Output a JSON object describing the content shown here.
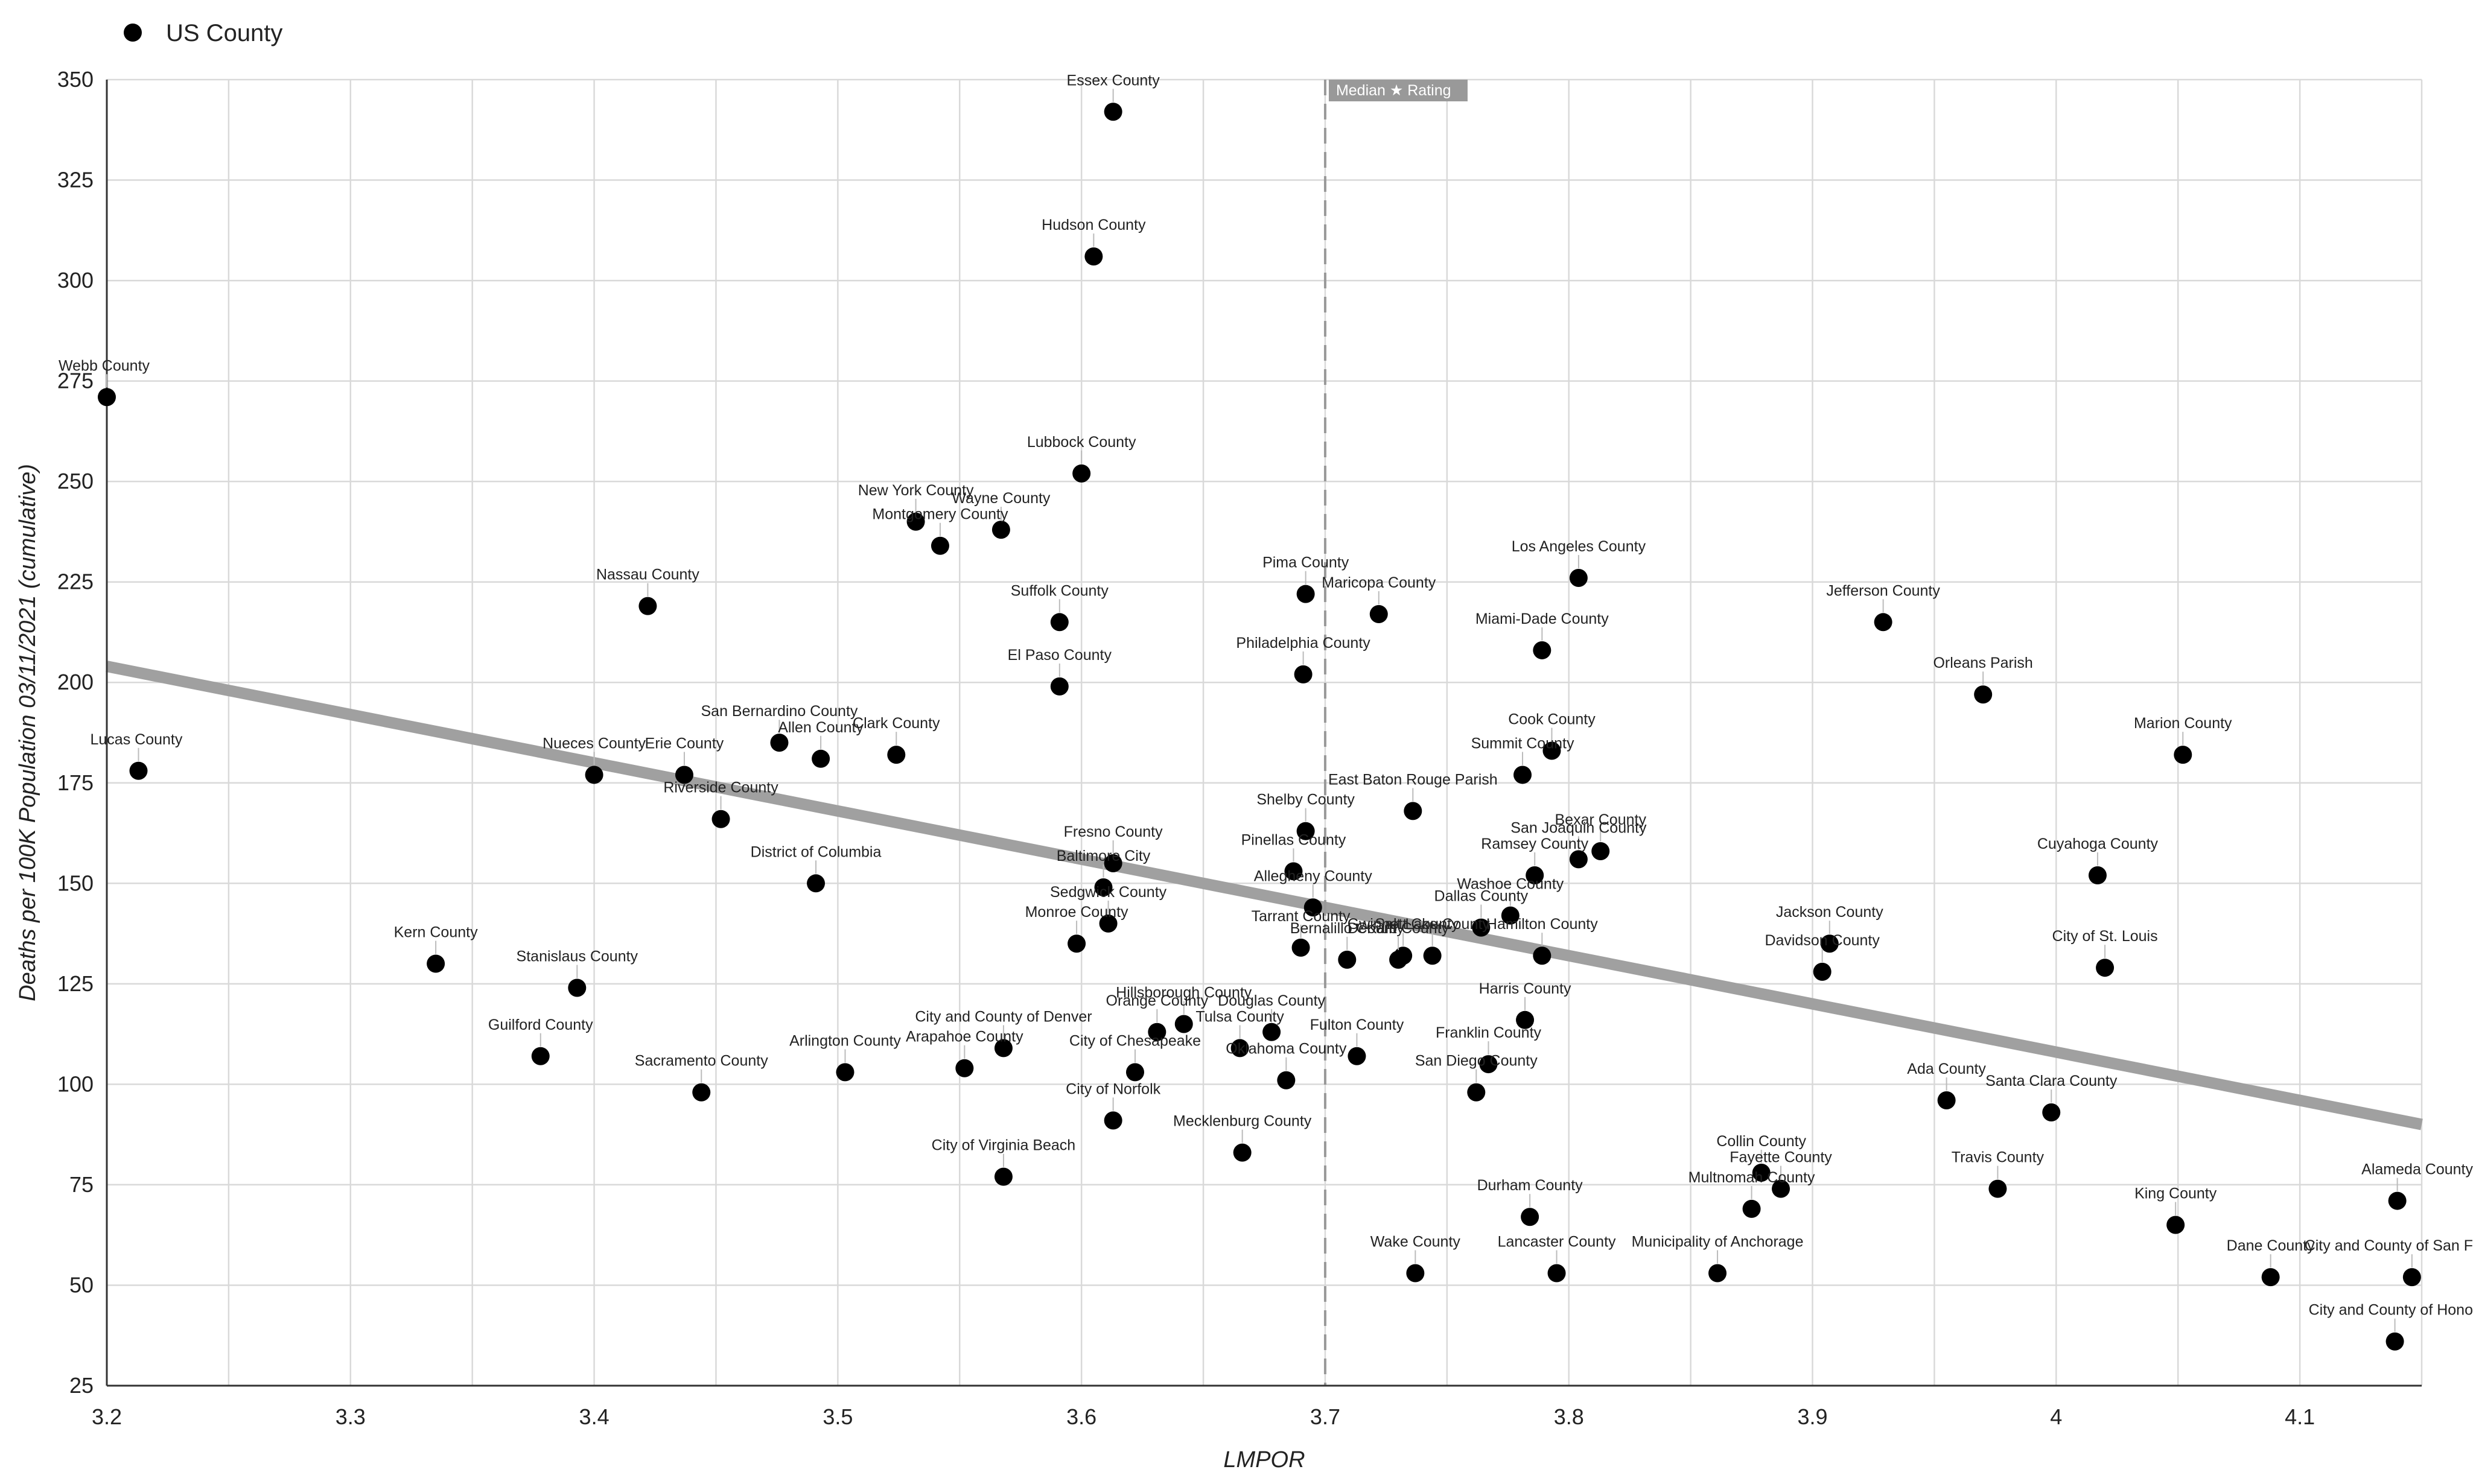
{
  "chart_data": {
    "type": "scatter",
    "xlabel": "LMPOR",
    "ylabel": "Deaths per 100K Population 03/11/2021 (cumulative)",
    "xlim": [
      3.2,
      4.15
    ],
    "ylim": [
      25,
      350
    ],
    "x_ticks": [
      "3.2",
      "3.3",
      "3.4",
      "3.5",
      "3.6",
      "3.7",
      "3.8",
      "3.9",
      "4",
      "4.1"
    ],
    "y_ticks": [
      "25",
      "50",
      "75",
      "100",
      "125",
      "150",
      "175",
      "200",
      "225",
      "250",
      "275",
      "300",
      "325",
      "350"
    ],
    "grid": true,
    "legend": {
      "position": "top-left",
      "entries": [
        "US County"
      ]
    },
    "series": [
      {
        "name": "US County",
        "color": "#000000",
        "points": [
          {
            "label": "Essex County",
            "x": 3.613,
            "y": 342
          },
          {
            "label": "Hudson County",
            "x": 3.605,
            "y": 306
          },
          {
            "label": "Webb County",
            "x": 3.2,
            "y": 271
          },
          {
            "label": "Lubbock County",
            "x": 3.6,
            "y": 252
          },
          {
            "label": "New York County",
            "x": 3.532,
            "y": 240
          },
          {
            "label": "Wayne County",
            "x": 3.567,
            "y": 238
          },
          {
            "label": "Montgomery County",
            "x": 3.542,
            "y": 234
          },
          {
            "label": "Pima County",
            "x": 3.692,
            "y": 222
          },
          {
            "label": "Maricopa County",
            "x": 3.722,
            "y": 217
          },
          {
            "label": "Los Angeles County",
            "x": 3.804,
            "y": 226
          },
          {
            "label": "Nassau County",
            "x": 3.422,
            "y": 219
          },
          {
            "label": "Suffolk County",
            "x": 3.591,
            "y": 215
          },
          {
            "label": "Jefferson County",
            "x": 3.929,
            "y": 215
          },
          {
            "label": "Miami-Dade County",
            "x": 3.789,
            "y": 208
          },
          {
            "label": "Philadelphia County",
            "x": 3.691,
            "y": 202
          },
          {
            "label": "El Paso County",
            "x": 3.591,
            "y": 199
          },
          {
            "label": "Orleans Parish",
            "x": 3.97,
            "y": 197
          },
          {
            "label": "San Bernardino County",
            "x": 3.476,
            "y": 185
          },
          {
            "label": "Allen County",
            "x": 3.493,
            "y": 181
          },
          {
            "label": "Clark County",
            "x": 3.524,
            "y": 182
          },
          {
            "label": "Lucas County",
            "x": 3.213,
            "y": 178
          },
          {
            "label": "Nueces County",
            "x": 3.4,
            "y": 177
          },
          {
            "label": "Erie County",
            "x": 3.437,
            "y": 177
          },
          {
            "label": "Cook County",
            "x": 3.793,
            "y": 183
          },
          {
            "label": "Summit County",
            "x": 3.781,
            "y": 177
          },
          {
            "label": "Marion County",
            "x": 4.052,
            "y": 182
          },
          {
            "label": "East Baton Rouge Parish",
            "x": 3.736,
            "y": 168
          },
          {
            "label": "Riverside County",
            "x": 3.452,
            "y": 166
          },
          {
            "label": "Shelby County",
            "x": 3.692,
            "y": 163
          },
          {
            "label": "Bexar County",
            "x": 3.813,
            "y": 158
          },
          {
            "label": "San Joaquin County",
            "x": 3.804,
            "y": 156
          },
          {
            "label": "Fresno County",
            "x": 3.613,
            "y": 155
          },
          {
            "label": "Pinellas County",
            "x": 3.687,
            "y": 153
          },
          {
            "label": "Ramsey County",
            "x": 3.786,
            "y": 152
          },
          {
            "label": "Cuyahoga County",
            "x": 4.017,
            "y": 152
          },
          {
            "label": "District of Columbia",
            "x": 3.491,
            "y": 150
          },
          {
            "label": "Baltimore City",
            "x": 3.609,
            "y": 149
          },
          {
            "label": "Allegheny County",
            "x": 3.695,
            "y": 144
          },
          {
            "label": "Washoe County",
            "x": 3.776,
            "y": 142
          },
          {
            "label": "Sedgwick County",
            "x": 3.611,
            "y": 140
          },
          {
            "label": "Dallas County",
            "x": 3.764,
            "y": 139
          },
          {
            "label": "Monroe County",
            "x": 3.598,
            "y": 135
          },
          {
            "label": "Jackson County",
            "x": 3.907,
            "y": 135
          },
          {
            "label": "Tarrant County",
            "x": 3.69,
            "y": 134
          },
          {
            "label": "Hamilton County",
            "x": 3.789,
            "y": 132
          },
          {
            "label": "Bernalillo County",
            "x": 3.709,
            "y": 131
          },
          {
            "label": "DeKalb County",
            "x": 3.73,
            "y": 131
          },
          {
            "label": "Gwinnett County",
            "x": 3.732,
            "y": 132
          },
          {
            "label": "Salt Lake County",
            "x": 3.744,
            "y": 132
          },
          {
            "label": "Kern County",
            "x": 3.335,
            "y": 130
          },
          {
            "label": "City of St. Louis",
            "x": 4.02,
            "y": 129
          },
          {
            "label": "Davidson County",
            "x": 3.904,
            "y": 128
          },
          {
            "label": "Stanislaus County",
            "x": 3.393,
            "y": 124
          },
          {
            "label": "Harris County",
            "x": 3.782,
            "y": 116
          },
          {
            "label": "Hillsborough County",
            "x": 3.642,
            "y": 115
          },
          {
            "label": "Orange County",
            "x": 3.631,
            "y": 113
          },
          {
            "label": "Douglas County",
            "x": 3.678,
            "y": 113
          },
          {
            "label": "Tulsa County",
            "x": 3.665,
            "y": 109
          },
          {
            "label": "City and County of Denver",
            "x": 3.568,
            "y": 109
          },
          {
            "label": "Fulton County",
            "x": 3.713,
            "y": 107
          },
          {
            "label": "Guilford County",
            "x": 3.378,
            "y": 107
          },
          {
            "label": "Franklin County",
            "x": 3.767,
            "y": 105
          },
          {
            "label": "Arapahoe County",
            "x": 3.552,
            "y": 104
          },
          {
            "label": "Arlington County",
            "x": 3.503,
            "y": 103
          },
          {
            "label": "City of Chesapeake",
            "x": 3.622,
            "y": 103
          },
          {
            "label": "Oklahoma County",
            "x": 3.684,
            "y": 101
          },
          {
            "label": "Sacramento County",
            "x": 3.444,
            "y": 98
          },
          {
            "label": "San Diego County",
            "x": 3.762,
            "y": 98
          },
          {
            "label": "Ada County",
            "x": 3.955,
            "y": 96
          },
          {
            "label": "Santa Clara County",
            "x": 3.998,
            "y": 93
          },
          {
            "label": "City of Norfolk",
            "x": 3.613,
            "y": 91
          },
          {
            "label": "Mecklenburg County",
            "x": 3.666,
            "y": 83
          },
          {
            "label": "Collin County",
            "x": 3.879,
            "y": 78
          },
          {
            "label": "City of Virginia Beach",
            "x": 3.568,
            "y": 77
          },
          {
            "label": "Fayette County",
            "x": 3.887,
            "y": 74
          },
          {
            "label": "Travis County",
            "x": 3.976,
            "y": 74
          },
          {
            "label": "Alameda County",
            "x": 4.14,
            "y": 71
          },
          {
            "label": "Multnomah County",
            "x": 3.875,
            "y": 69
          },
          {
            "label": "Durham County",
            "x": 3.784,
            "y": 67
          },
          {
            "label": "King County",
            "x": 4.049,
            "y": 65
          },
          {
            "label": "Municipality of Anchorage",
            "x": 3.861,
            "y": 53
          },
          {
            "label": "Wake County",
            "x": 3.737,
            "y": 53
          },
          {
            "label": "Lancaster County",
            "x": 3.795,
            "y": 53
          },
          {
            "label": "Dane County",
            "x": 4.088,
            "y": 52
          },
          {
            "label": "City and County of San F",
            "x": 4.146,
            "y": 52
          },
          {
            "label": "City and County of Hono",
            "x": 4.139,
            "y": 36
          }
        ]
      }
    ],
    "trendline": {
      "color": "#a0a0a0",
      "x": [
        3.2,
        4.15
      ],
      "y": [
        204,
        90
      ]
    },
    "median_line": {
      "label": "Median ★ Rating",
      "x": 3.7,
      "color": "#999999"
    }
  }
}
